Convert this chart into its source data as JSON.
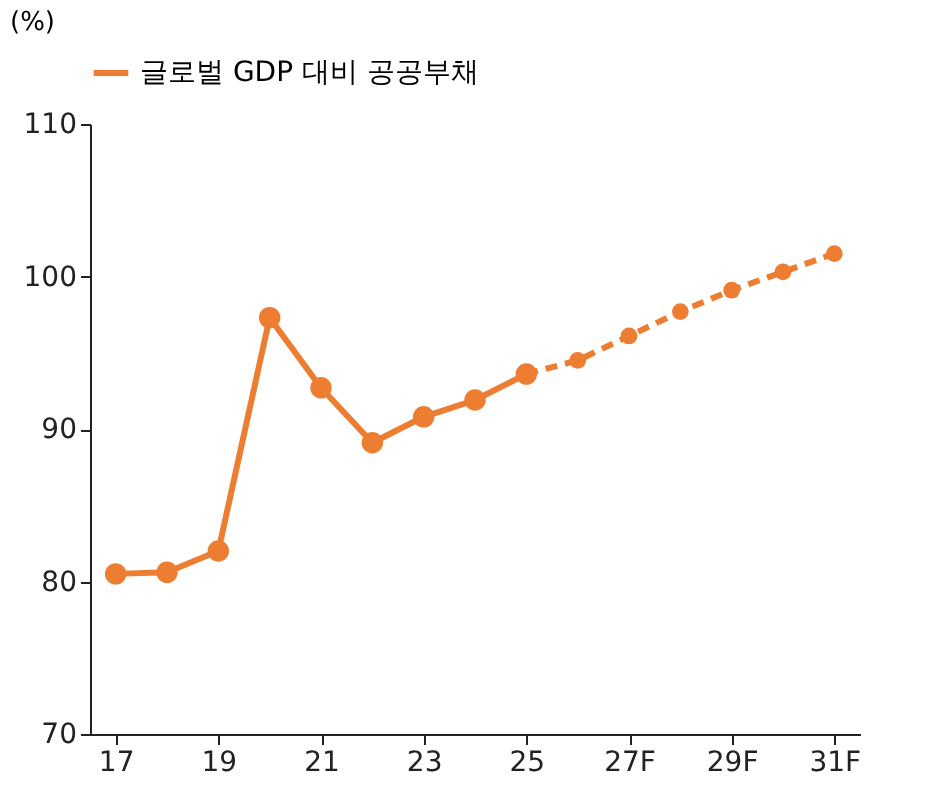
{
  "chart_data": {
    "type": "line",
    "ylabel": "(%)",
    "categories": [
      "17",
      null,
      "19",
      null,
      "21",
      null,
      "23",
      null,
      "25",
      null,
      "27F",
      null,
      "29F",
      null,
      "31F"
    ],
    "series": [
      {
        "name": "글로벌 GDP 대비 공공부채",
        "color": "#ed7d31",
        "line_style": "solid",
        "values": [
          80.5,
          80.6,
          82,
          97.3,
          92.7,
          89.1,
          90.8,
          91.9,
          93.6,
          null,
          null,
          null,
          null,
          null,
          null
        ]
      },
      {
        "color": "#ed7d31",
        "line_style": "dashed",
        "values": [
          null,
          null,
          null,
          null,
          null,
          null,
          null,
          null,
          93.6,
          94.5,
          96.1,
          97.7,
          99.1,
          100.3,
          101.5
        ]
      }
    ],
    "ylim": [
      70,
      110
    ],
    "yticks": [
      70,
      80,
      90,
      100,
      110
    ],
    "grid": false,
    "legend": "top",
    "marker": "circle"
  }
}
